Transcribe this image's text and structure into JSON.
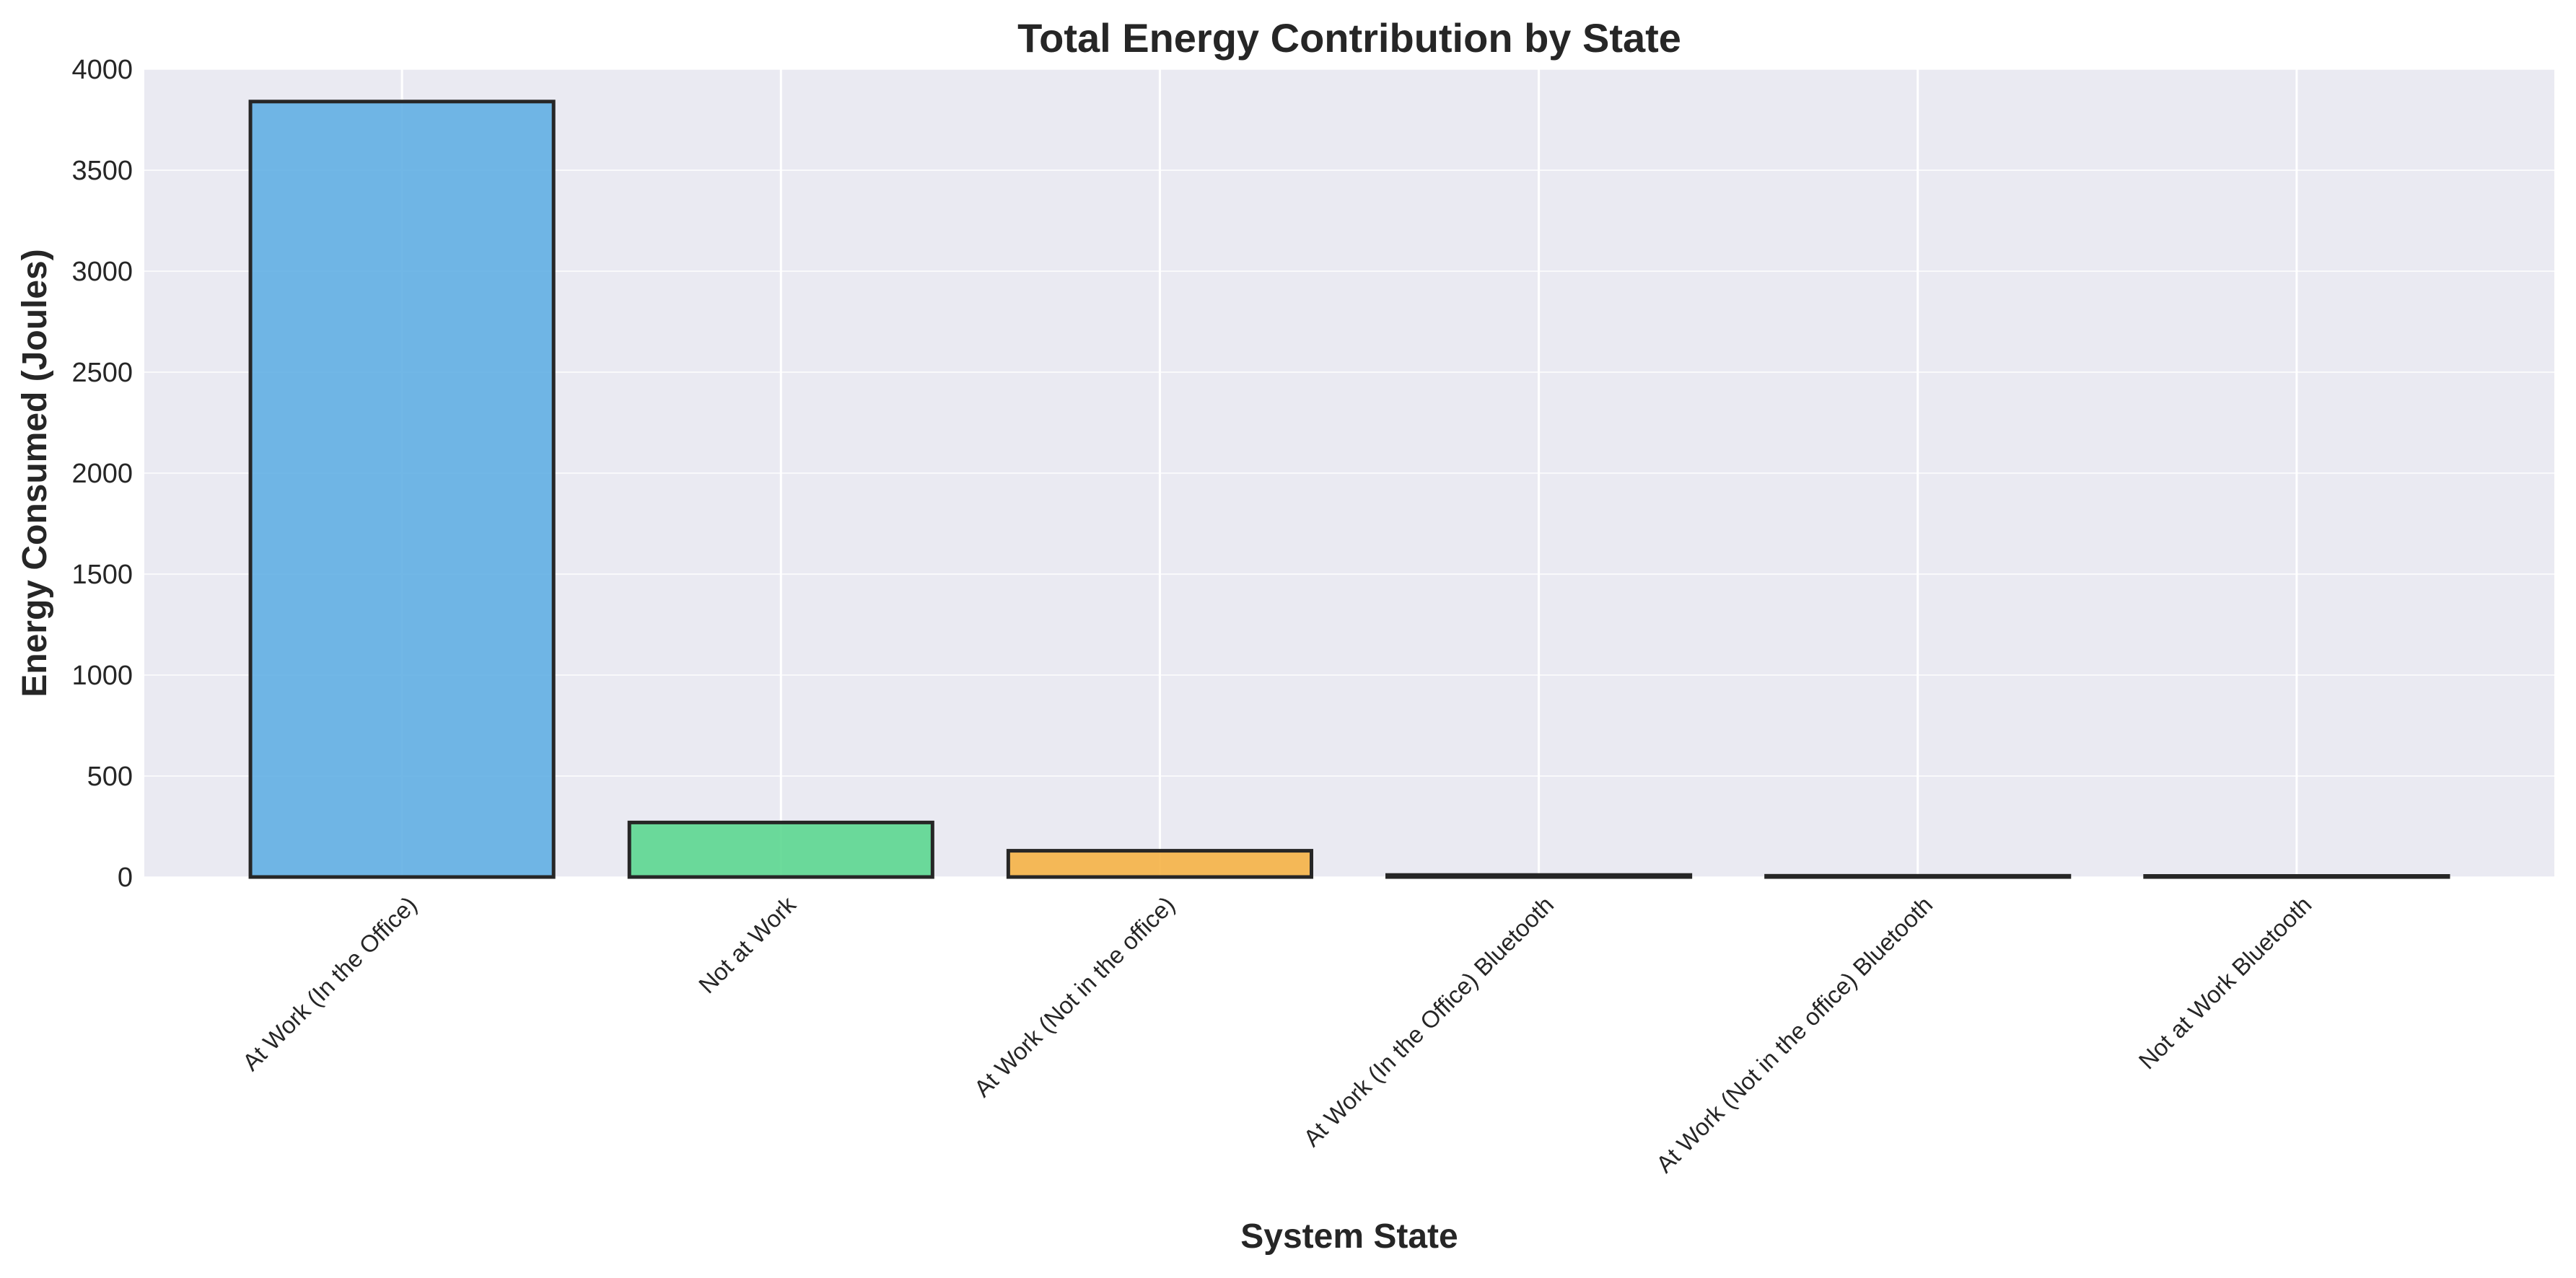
{
  "chart_data": {
    "type": "bar",
    "title": "Total Energy Contribution by State",
    "xlabel": "System State",
    "ylabel": "Energy Consumed (Joules)",
    "categories": [
      "At Work (In the Office)",
      "Not at Work",
      "At Work (Not in the office)",
      "At Work (In the Office) Bluetooth",
      "At Work (Not in the office) Bluetooth",
      "Not at Work Bluetooth"
    ],
    "values": [
      3840,
      270,
      130,
      10,
      6,
      4
    ],
    "colors": [
      "#5dade2",
      "#58d68d",
      "#f5b041",
      "#ec7063",
      "#af7ac5",
      "#48c9b0"
    ],
    "edge_color": "#262626",
    "ylim": [
      0,
      4000
    ],
    "yticks": [
      0,
      500,
      1000,
      1500,
      2000,
      2500,
      3000,
      3500,
      4000
    ],
    "grid": true,
    "legend": "none",
    "plot_background": "#eaeaf2"
  }
}
